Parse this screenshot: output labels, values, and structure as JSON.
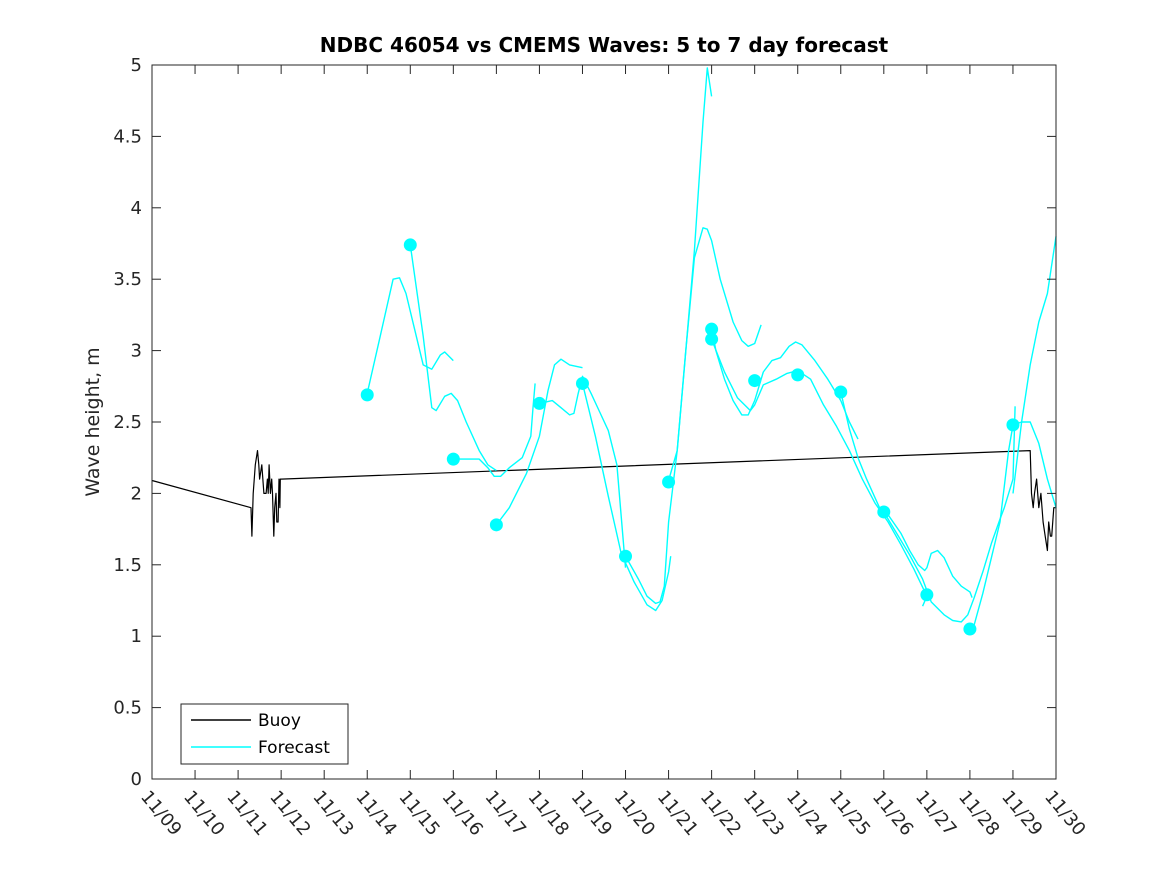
{
  "chart_data": {
    "type": "line",
    "title": "NDBC 46054 vs CMEMS Waves: 5 to 7 day forecast",
    "xlabel": "",
    "ylabel": "Wave height, m",
    "xlim": [
      "11/09",
      "11/30"
    ],
    "ylim": [
      0,
      5
    ],
    "x_tick_labels": [
      "11/09",
      "11/10",
      "11/11",
      "11/12",
      "11/13",
      "11/14",
      "11/15",
      "11/16",
      "11/17",
      "11/18",
      "11/19",
      "11/20",
      "11/21",
      "11/22",
      "11/23",
      "11/24",
      "11/25",
      "11/26",
      "11/27",
      "11/28",
      "11/29",
      "11/30"
    ],
    "y_tick_labels": [
      "0",
      "0.5",
      "1",
      "1.5",
      "2",
      "2.5",
      "3",
      "3.5",
      "4",
      "4.5",
      "5"
    ],
    "grid": false,
    "legend_position": "bottom-left",
    "colors": {
      "buoy": "#000000",
      "forecast": "#00ffff"
    },
    "legend": [
      {
        "label": "Buoy",
        "series": "buoy"
      },
      {
        "label": "Forecast",
        "series": "forecast"
      }
    ],
    "series": [
      {
        "key": "buoy",
        "name": "Buoy",
        "segments": [
          [
            [
              9.0,
              2.09
            ],
            [
              11.3,
              1.9
            ],
            [
              11.32,
              1.7
            ],
            [
              11.35,
              2.0
            ],
            [
              11.4,
              2.2
            ],
            [
              11.45,
              2.3
            ],
            [
              11.48,
              2.2
            ],
            [
              11.5,
              2.1
            ],
            [
              11.55,
              2.2
            ],
            [
              11.6,
              2.0
            ],
            [
              11.65,
              2.0
            ],
            [
              11.68,
              2.1
            ],
            [
              11.7,
              2.0
            ],
            [
              11.72,
              2.2
            ],
            [
              11.75,
              2.0
            ],
            [
              11.78,
              2.1
            ],
            [
              11.8,
              2.0
            ],
            [
              11.83,
              1.7
            ],
            [
              11.85,
              1.9
            ],
            [
              11.88,
              2.0
            ],
            [
              11.9,
              1.8
            ],
            [
              11.93,
              1.8
            ],
            [
              11.95,
              2.1
            ],
            [
              11.97,
              1.9
            ],
            [
              11.98,
              2.1
            ],
            [
              12.0,
              2.1
            ],
            [
              29.4,
              2.3
            ],
            [
              29.43,
              2.0
            ],
            [
              29.47,
              1.9
            ],
            [
              29.5,
              2.0
            ],
            [
              29.55,
              2.1
            ],
            [
              29.6,
              1.9
            ],
            [
              29.65,
              2.0
            ],
            [
              29.7,
              1.8
            ],
            [
              29.75,
              1.7
            ],
            [
              29.8,
              1.6
            ],
            [
              29.83,
              1.8
            ],
            [
              29.87,
              1.7
            ],
            [
              29.9,
              1.7
            ],
            [
              29.95,
              1.9
            ],
            [
              30.0,
              1.9
            ]
          ]
        ]
      },
      {
        "key": "forecast",
        "name": "Forecast",
        "segments": [
          [
            [
              14.0,
              2.7
            ],
            [
              14.3,
              3.1
            ],
            [
              14.6,
              3.5
            ],
            [
              14.75,
              3.51
            ],
            [
              14.9,
              3.4
            ],
            [
              15.1,
              3.15
            ],
            [
              15.3,
              2.9
            ],
            [
              15.5,
              2.87
            ],
            [
              15.7,
              2.97
            ],
            [
              15.8,
              2.99
            ],
            [
              16.0,
              2.93
            ]
          ],
          [
            [
              15.0,
              3.74
            ],
            [
              15.3,
              3.1
            ],
            [
              15.5,
              2.6
            ],
            [
              15.6,
              2.58
            ],
            [
              15.8,
              2.68
            ],
            [
              15.95,
              2.7
            ],
            [
              16.1,
              2.65
            ],
            [
              16.3,
              2.5
            ],
            [
              16.6,
              2.3
            ],
            [
              16.8,
              2.2
            ],
            [
              17.0,
              2.16
            ]
          ],
          [
            [
              16.0,
              2.24
            ],
            [
              16.3,
              2.24
            ],
            [
              16.6,
              2.24
            ],
            [
              16.8,
              2.18
            ],
            [
              16.95,
              2.12
            ],
            [
              17.1,
              2.12
            ],
            [
              17.3,
              2.18
            ],
            [
              17.6,
              2.25
            ],
            [
              17.8,
              2.4
            ],
            [
              17.85,
              2.6
            ],
            [
              17.9,
              2.77
            ]
          ],
          [
            [
              17.0,
              1.78
            ],
            [
              17.3,
              1.9
            ],
            [
              17.7,
              2.14
            ],
            [
              18.0,
              2.4
            ],
            [
              18.2,
              2.72
            ],
            [
              18.35,
              2.9
            ],
            [
              18.5,
              2.94
            ],
            [
              18.7,
              2.9
            ],
            [
              19.0,
              2.88
            ]
          ],
          [
            [
              18.0,
              2.63
            ],
            [
              18.3,
              2.65
            ],
            [
              18.5,
              2.6
            ],
            [
              18.7,
              2.55
            ],
            [
              18.8,
              2.56
            ],
            [
              18.9,
              2.7
            ],
            [
              19.0,
              2.82
            ],
            [
              19.2,
              2.7
            ],
            [
              19.4,
              2.57
            ],
            [
              19.6,
              2.44
            ],
            [
              19.8,
              2.2
            ],
            [
              20.0,
              1.48
            ]
          ],
          [
            [
              19.0,
              2.77
            ],
            [
              19.3,
              2.4
            ],
            [
              19.6,
              1.98
            ],
            [
              19.9,
              1.58
            ],
            [
              20.2,
              1.38
            ],
            [
              20.5,
              1.22
            ],
            [
              20.7,
              1.18
            ],
            [
              20.85,
              1.25
            ],
            [
              21.0,
              1.45
            ],
            [
              21.05,
              1.56
            ]
          ],
          [
            [
              20.0,
              1.56
            ],
            [
              20.3,
              1.4
            ],
            [
              20.5,
              1.28
            ],
            [
              20.7,
              1.23
            ],
            [
              20.8,
              1.24
            ],
            [
              20.9,
              1.35
            ],
            [
              21.0,
              1.8
            ],
            [
              21.2,
              2.3
            ],
            [
              21.4,
              3.0
            ],
            [
              21.6,
              3.7
            ],
            [
              21.8,
              4.6
            ],
            [
              21.9,
              4.98
            ],
            [
              22.0,
              4.78
            ]
          ],
          [
            [
              21.0,
              2.09
            ],
            [
              21.2,
              2.3
            ],
            [
              21.4,
              3.0
            ],
            [
              21.6,
              3.65
            ],
            [
              21.8,
              3.86
            ],
            [
              21.9,
              3.85
            ],
            [
              22.0,
              3.77
            ],
            [
              22.2,
              3.5
            ],
            [
              22.5,
              3.2
            ],
            [
              22.7,
              3.07
            ],
            [
              22.85,
              3.03
            ],
            [
              23.0,
              3.05
            ],
            [
              23.15,
              3.18
            ]
          ],
          [
            [
              22.0,
              3.16
            ],
            [
              22.1,
              3.0
            ],
            [
              22.3,
              2.8
            ],
            [
              22.5,
              2.65
            ],
            [
              22.7,
              2.55
            ],
            [
              22.85,
              2.55
            ],
            [
              23.0,
              2.65
            ],
            [
              23.2,
              2.85
            ],
            [
              23.4,
              2.93
            ],
            [
              23.6,
              2.95
            ],
            [
              23.8,
              3.03
            ],
            [
              23.95,
              3.06
            ],
            [
              24.1,
              3.04
            ],
            [
              24.4,
              2.93
            ],
            [
              24.7,
              2.8
            ],
            [
              25.0,
              2.65
            ],
            [
              25.2,
              2.5
            ],
            [
              25.4,
              2.38
            ]
          ],
          [
            [
              22.0,
              3.08
            ],
            [
              22.3,
              2.85
            ],
            [
              22.6,
              2.67
            ],
            [
              22.9,
              2.58
            ],
            [
              23.0,
              2.62
            ],
            [
              23.2,
              2.76
            ],
            [
              23.5,
              2.8
            ],
            [
              23.75,
              2.84
            ],
            [
              24.0,
              2.86
            ],
            [
              24.3,
              2.8
            ],
            [
              24.6,
              2.62
            ],
            [
              24.9,
              2.47
            ],
            [
              25.2,
              2.3
            ],
            [
              25.5,
              2.1
            ],
            [
              25.8,
              1.93
            ],
            [
              26.1,
              1.8
            ],
            [
              26.4,
              1.64
            ],
            [
              26.7,
              1.47
            ],
            [
              27.0,
              1.28
            ],
            [
              26.9,
              1.21
            ]
          ],
          [
            [
              25.0,
              2.71
            ],
            [
              25.2,
              2.45
            ],
            [
              25.4,
              2.25
            ],
            [
              25.6,
              2.1
            ],
            [
              25.9,
              1.9
            ],
            [
              26.1,
              1.85
            ],
            [
              26.4,
              1.72
            ],
            [
              26.6,
              1.6
            ],
            [
              26.8,
              1.5
            ],
            [
              26.95,
              1.46
            ],
            [
              27.0,
              1.48
            ],
            [
              27.1,
              1.58
            ],
            [
              27.25,
              1.6
            ],
            [
              27.4,
              1.55
            ],
            [
              27.6,
              1.42
            ],
            [
              27.8,
              1.35
            ],
            [
              28.0,
              1.31
            ],
            [
              28.05,
              1.27
            ]
          ],
          [
            [
              26.0,
              1.87
            ],
            [
              26.3,
              1.72
            ],
            [
              26.6,
              1.57
            ],
            [
              26.9,
              1.4
            ],
            [
              27.1,
              1.24
            ],
            [
              27.4,
              1.15
            ],
            [
              27.6,
              1.11
            ],
            [
              27.8,
              1.1
            ],
            [
              27.95,
              1.15
            ],
            [
              28.1,
              1.27
            ],
            [
              28.3,
              1.45
            ],
            [
              28.5,
              1.65
            ],
            [
              28.7,
              1.82
            ],
            [
              28.8,
              1.9
            ],
            [
              29.0,
              2.1
            ],
            [
              29.05,
              2.61
            ]
          ],
          [
            [
              28.0,
              1.05
            ],
            [
              28.1,
              1.08
            ],
            [
              28.3,
              1.3
            ],
            [
              28.5,
              1.55
            ],
            [
              28.7,
              1.8
            ],
            [
              28.9,
              2.3
            ],
            [
              29.0,
              2.48
            ],
            [
              29.2,
              2.5
            ],
            [
              29.4,
              2.5
            ],
            [
              29.6,
              2.35
            ],
            [
              29.8,
              2.1
            ],
            [
              30.0,
              1.9
            ]
          ],
          [
            [
              29.0,
              2.0
            ],
            [
              29.2,
              2.5
            ],
            [
              29.4,
              2.9
            ],
            [
              29.6,
              3.2
            ],
            [
              29.8,
              3.4
            ],
            [
              30.0,
              3.8
            ]
          ]
        ]
      }
    ],
    "markers": {
      "series": "forecast",
      "points": [
        [
          14.0,
          2.69
        ],
        [
          15.0,
          3.74
        ],
        [
          16.0,
          2.24
        ],
        [
          17.0,
          1.78
        ],
        [
          18.0,
          2.63
        ],
        [
          19.0,
          2.77
        ],
        [
          20.0,
          1.56
        ],
        [
          21.0,
          2.08
        ],
        [
          22.0,
          3.15
        ],
        [
          22.0,
          3.08
        ],
        [
          23.0,
          2.79
        ],
        [
          24.0,
          2.83
        ],
        [
          25.0,
          2.71
        ],
        [
          26.0,
          1.87
        ],
        [
          27.0,
          1.29
        ],
        [
          28.0,
          1.05
        ],
        [
          29.0,
          2.48
        ]
      ]
    }
  }
}
